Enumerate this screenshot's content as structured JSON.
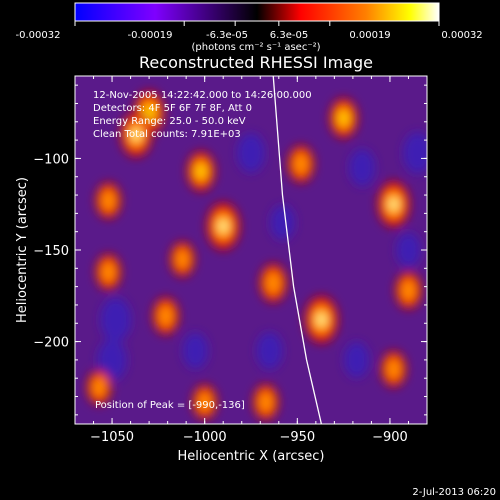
{
  "colorbar": {
    "ticks": [
      "-0.00032",
      "-0.00019",
      "-6.3e-05",
      "6.3e-05",
      "0.00019",
      "0.00032"
    ],
    "unit_text": "(photons cm⁻² s⁻¹ asec⁻²)"
  },
  "plot": {
    "title": "Reconstructed RHESSI Image",
    "info_lines": [
      "12-Nov-2005 14:22:42.000 to 14:26:00.000",
      "Detectors: 4F 5F 6F 7F 8F, Att 0",
      "Energy Range: 25.0 - 50.0 keV",
      "Clean    Total counts: 7.91E+03"
    ],
    "peak_text": "Position of Peak = [-990,-136]"
  },
  "chart_data": {
    "type": "heatmap",
    "title": "Reconstructed RHESSI Image",
    "xlabel": "Heliocentric X (arcsec)",
    "ylabel": "Heliocentric Y (arcsec)",
    "xlim": [
      -1070,
      -880
    ],
    "ylim": [
      -245,
      -55
    ],
    "xticks": [
      -1050,
      -1000,
      -950,
      -900
    ],
    "yticks": [
      -100,
      -150,
      -200
    ],
    "colorscale_range": [
      -0.00032,
      0.00032
    ],
    "colormap": [
      "#0000ff",
      "#7f00ff",
      "#000000",
      "#ff0000",
      "#ff8000",
      "#ffff00",
      "#ffffff"
    ],
    "peak": {
      "x": -990,
      "y": -136
    },
    "bright_sources": [
      {
        "x": -990,
        "y": -137,
        "rel": 1.0
      },
      {
        "x": -1030,
        "y": -75,
        "rel": 0.85
      },
      {
        "x": -1037,
        "y": -87,
        "rel": 0.9
      },
      {
        "x": -1002,
        "y": -107,
        "rel": 0.7
      },
      {
        "x": -948,
        "y": -103,
        "rel": 0.6
      },
      {
        "x": -925,
        "y": -78,
        "rel": 0.7
      },
      {
        "x": -898,
        "y": -125,
        "rel": 0.95
      },
      {
        "x": -937,
        "y": -188,
        "rel": 1.0
      },
      {
        "x": -963,
        "y": -168,
        "rel": 0.65
      },
      {
        "x": -1021,
        "y": -186,
        "rel": 0.6
      },
      {
        "x": -1052,
        "y": -162,
        "rel": 0.55
      },
      {
        "x": -890,
        "y": -172,
        "rel": 0.6
      },
      {
        "x": -967,
        "y": -233,
        "rel": 0.55
      },
      {
        "x": -898,
        "y": -215,
        "rel": 0.55
      },
      {
        "x": -1057,
        "y": -225,
        "rel": 0.5
      },
      {
        "x": -1000,
        "y": -233,
        "rel": 0.5
      },
      {
        "x": -1012,
        "y": -155,
        "rel": 0.5
      },
      {
        "x": -1052,
        "y": -123,
        "rel": 0.55
      }
    ],
    "negative_regions": [
      {
        "x": -1048,
        "y": -188,
        "rel": 0.8
      },
      {
        "x": -1050,
        "y": -210,
        "rel": 0.7
      },
      {
        "x": -975,
        "y": -97,
        "rel": 0.6
      },
      {
        "x": -915,
        "y": -105,
        "rel": 0.5
      },
      {
        "x": -885,
        "y": -97,
        "rel": 0.7
      },
      {
        "x": -890,
        "y": -150,
        "rel": 0.4
      },
      {
        "x": -965,
        "y": -205,
        "rel": 0.5
      },
      {
        "x": -958,
        "y": -135,
        "rel": 0.4
      },
      {
        "x": -918,
        "y": -210,
        "rel": 0.45
      },
      {
        "x": -1005,
        "y": -205,
        "rel": 0.45
      }
    ],
    "limb_curve": [
      [
        -963,
        -55
      ],
      [
        -958,
        -120
      ],
      [
        -952,
        -170
      ],
      [
        -945,
        -210
      ],
      [
        -937,
        -245
      ]
    ]
  },
  "footer": {
    "date_stamp": "2-Jul-2013 06:20"
  }
}
